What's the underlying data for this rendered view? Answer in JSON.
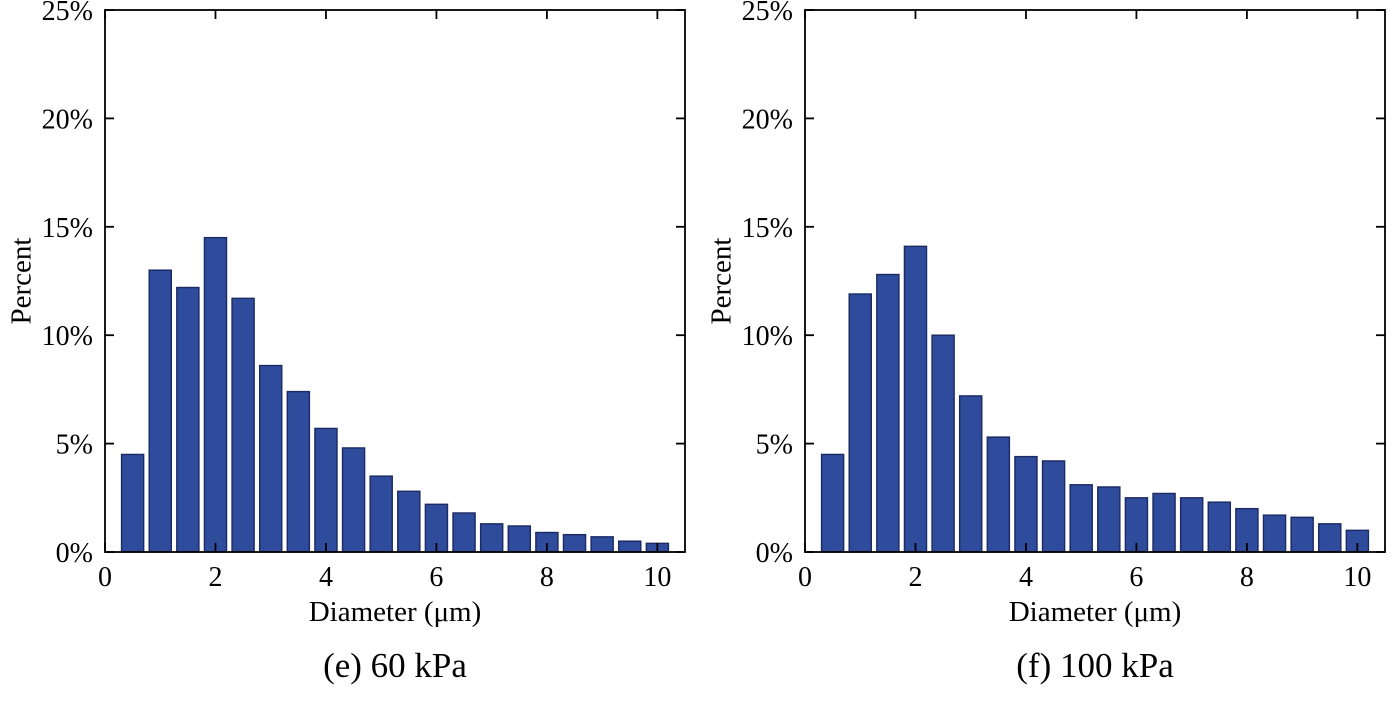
{
  "page": {
    "background": "#ffffff"
  },
  "style": {
    "bar_fill": "#2f4b9b",
    "bar_edge": "#1b2a63",
    "axis_color": "#000000",
    "tick_font_size": 28
  },
  "chart_data": [
    {
      "type": "bar",
      "title": "(e) 60 kPa",
      "xlabel": "Diameter (μm)",
      "ylabel": "Percent",
      "xlim": [
        0,
        10.5
      ],
      "ylim": [
        0,
        25
      ],
      "grid": false,
      "legend": "none",
      "x_ticks": [
        0,
        2,
        4,
        6,
        8,
        10
      ],
      "x_tick_labels": [
        "0",
        "2",
        "4",
        "6",
        "8",
        "10"
      ],
      "y_ticks": [
        0,
        5,
        10,
        15,
        20,
        25
      ],
      "y_tick_labels": [
        "0%",
        "5%",
        "10%",
        "15%",
        "20%",
        "25%"
      ],
      "bin_width": 0.5,
      "bar_width": 0.4,
      "x": [
        0.5,
        1.0,
        1.5,
        2.0,
        2.5,
        3.0,
        3.5,
        4.0,
        4.5,
        5.0,
        5.5,
        6.0,
        6.5,
        7.0,
        7.5,
        8.0,
        8.5,
        9.0,
        9.5,
        10.0
      ],
      "values": [
        4.5,
        13.0,
        12.2,
        14.5,
        11.7,
        8.6,
        7.4,
        5.7,
        4.8,
        3.5,
        2.8,
        2.2,
        1.8,
        1.3,
        1.2,
        0.9,
        0.8,
        0.7,
        0.5,
        0.4
      ]
    },
    {
      "type": "bar",
      "title": "(f) 100 kPa",
      "xlabel": "Diameter (μm)",
      "ylabel": "Percent",
      "xlim": [
        0,
        10.5
      ],
      "ylim": [
        0,
        25
      ],
      "grid": false,
      "legend": "none",
      "x_ticks": [
        0,
        2,
        4,
        6,
        8,
        10
      ],
      "x_tick_labels": [
        "0",
        "2",
        "4",
        "6",
        "8",
        "10"
      ],
      "y_ticks": [
        0,
        5,
        10,
        15,
        20,
        25
      ],
      "y_tick_labels": [
        "0%",
        "5%",
        "10%",
        "15%",
        "20%",
        "25%"
      ],
      "bin_width": 0.5,
      "bar_width": 0.4,
      "x": [
        0.5,
        1.0,
        1.5,
        2.0,
        2.5,
        3.0,
        3.5,
        4.0,
        4.5,
        5.0,
        5.5,
        6.0,
        6.5,
        7.0,
        7.5,
        8.0,
        8.5,
        9.0,
        9.5,
        10.0
      ],
      "values": [
        4.5,
        11.9,
        12.8,
        14.1,
        10.0,
        7.2,
        5.3,
        4.4,
        4.2,
        3.1,
        3.0,
        2.5,
        2.7,
        2.5,
        2.3,
        2.0,
        1.7,
        1.6,
        1.3,
        1.0
      ]
    }
  ]
}
